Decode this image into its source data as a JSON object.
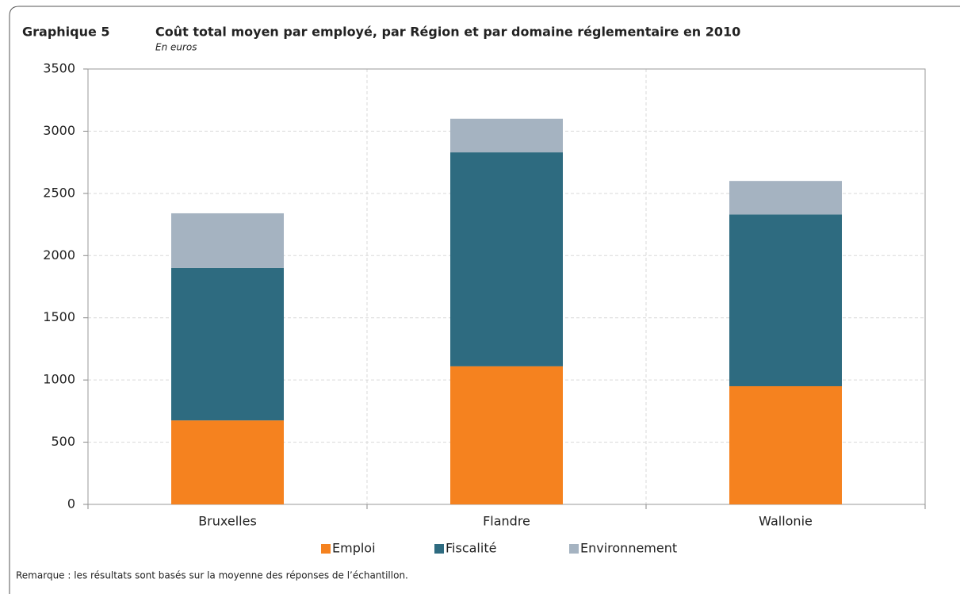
{
  "chart_data": {
    "type": "stacked_bar",
    "label": "Graphique 5",
    "title": "Coût total moyen par employé, par Région et par domaine réglementaire en 2010",
    "subtitle": "En euros",
    "note": "Remarque : les résultats sont basés sur la moyenne des réponses de l’échantillon.",
    "categories": [
      "Bruxelles",
      "Flandre",
      "Wallonie"
    ],
    "series": [
      {
        "name": "Emploi",
        "color": "#f5821f",
        "values": [
          675,
          1110,
          950
        ]
      },
      {
        "name": "Fiscalité",
        "color": "#2e6b80",
        "values": [
          1225,
          1720,
          1380
        ]
      },
      {
        "name": "Environnement",
        "color": "#a5b3c1",
        "values": [
          440,
          270,
          270
        ]
      }
    ],
    "ylim": [
      0,
      3500
    ],
    "yticks": [
      0,
      500,
      1000,
      1500,
      2000,
      2500,
      3000,
      3500
    ],
    "grid": true,
    "legend": "bottom"
  }
}
